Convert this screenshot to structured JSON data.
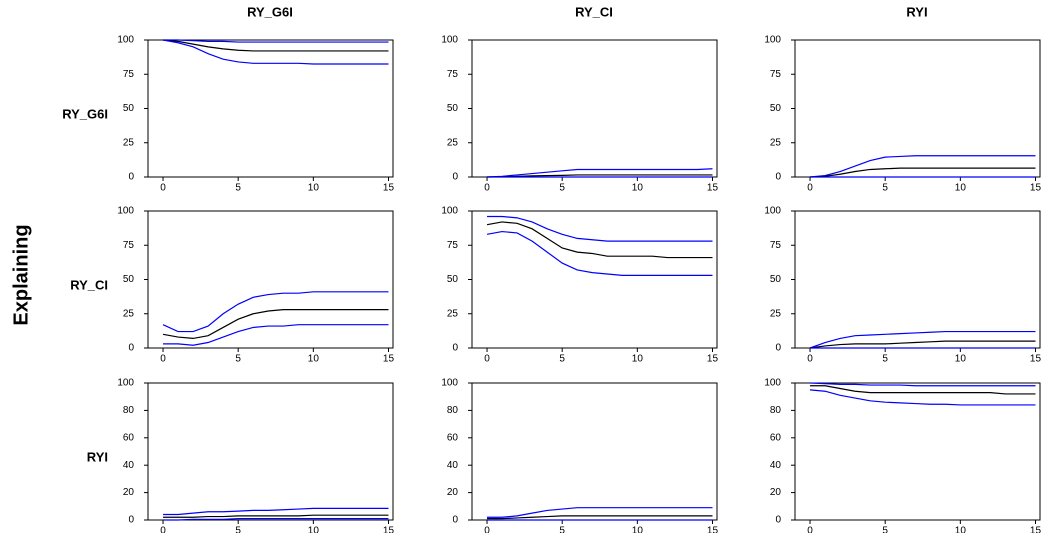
{
  "column_titles": [
    "RY_G6I",
    "RY_CI",
    "RYI"
  ],
  "row_labels": [
    "RY_G6I",
    "RY_CI",
    "RYI"
  ],
  "side_label": "Explaining",
  "chart_data": [
    {
      "type": "line",
      "x": [
        0,
        1,
        2,
        3,
        4,
        5,
        6,
        7,
        8,
        9,
        10,
        11,
        12,
        13,
        14,
        15
      ],
      "xlim": [
        -1,
        15.3
      ],
      "xticks": [
        0,
        5,
        10,
        15
      ],
      "ylim": [
        0,
        100
      ],
      "yticks": [
        0,
        25,
        50,
        75,
        100
      ],
      "series": [
        {
          "color": "#0000ff",
          "values": [
            100,
            100,
            99.5,
            99,
            99,
            98.5,
            98.5,
            98.5,
            98.5,
            98.5,
            98.5,
            98.5,
            98.5,
            98.5,
            98.5,
            98.5
          ]
        },
        {
          "color": "#000000",
          "values": [
            100,
            99,
            97,
            95,
            93.5,
            92.5,
            92,
            92,
            92,
            92,
            92,
            92,
            92,
            92,
            92,
            92
          ]
        },
        {
          "color": "#0000ff",
          "values": [
            100,
            98,
            95,
            90,
            86,
            84,
            83,
            83,
            83,
            83,
            82.5,
            82.5,
            82.5,
            82.5,
            82.5,
            82.5
          ]
        }
      ]
    },
    {
      "type": "line",
      "x": [
        0,
        1,
        2,
        3,
        4,
        5,
        6,
        7,
        8,
        9,
        10,
        11,
        12,
        13,
        14,
        15
      ],
      "xlim": [
        -1,
        15.3
      ],
      "xticks": [
        0,
        5,
        10,
        15
      ],
      "ylim": [
        0,
        100
      ],
      "yticks": [
        0,
        25,
        50,
        75,
        100
      ],
      "series": [
        {
          "color": "#0000ff",
          "values": [
            0,
            0.5,
            1.5,
            2.5,
            3.5,
            4.5,
            5.5,
            5.5,
            5.5,
            5.5,
            5.5,
            5.5,
            5.5,
            5.5,
            5.5,
            6
          ]
        },
        {
          "color": "#000000",
          "values": [
            0,
            0.2,
            0.5,
            0.8,
            1,
            1.2,
            1.5,
            1.5,
            1.5,
            1.5,
            1.5,
            1.5,
            1.5,
            1.5,
            1.5,
            1.5
          ]
        },
        {
          "color": "#0000ff",
          "values": [
            0,
            0,
            0,
            0,
            0,
            0,
            0,
            0,
            0,
            0,
            0,
            0,
            0,
            0,
            0,
            0
          ]
        }
      ]
    },
    {
      "type": "line",
      "x": [
        0,
        1,
        2,
        3,
        4,
        5,
        6,
        7,
        8,
        9,
        10,
        11,
        12,
        13,
        14,
        15
      ],
      "xlim": [
        -1,
        15.3
      ],
      "xticks": [
        0,
        5,
        10,
        15
      ],
      "ylim": [
        0,
        100
      ],
      "yticks": [
        0,
        25,
        50,
        75,
        100
      ],
      "series": [
        {
          "color": "#0000ff",
          "values": [
            0,
            1,
            4,
            8,
            12,
            14.5,
            15,
            15.5,
            15.5,
            15.5,
            15.5,
            15.5,
            15.5,
            15.5,
            15.5,
            15.5
          ]
        },
        {
          "color": "#000000",
          "values": [
            0,
            0.5,
            2,
            4,
            5.5,
            6,
            6.5,
            6.5,
            6.5,
            6.5,
            6.5,
            6.5,
            6.5,
            6.5,
            6.5,
            6.5
          ]
        },
        {
          "color": "#0000ff",
          "values": [
            0,
            0,
            0,
            0,
            0,
            0,
            0,
            0,
            0,
            0,
            0,
            0,
            0,
            0,
            0,
            0
          ]
        }
      ]
    },
    {
      "type": "line",
      "x": [
        0,
        1,
        2,
        3,
        4,
        5,
        6,
        7,
        8,
        9,
        10,
        11,
        12,
        13,
        14,
        15
      ],
      "xlim": [
        -1,
        15.3
      ],
      "xticks": [
        0,
        5,
        10,
        15
      ],
      "ylim": [
        0,
        100
      ],
      "yticks": [
        0,
        25,
        50,
        75,
        100
      ],
      "series": [
        {
          "color": "#0000ff",
          "values": [
            17,
            12,
            12,
            16,
            25,
            32,
            37,
            39,
            40,
            40,
            41,
            41,
            41,
            41,
            41,
            41
          ]
        },
        {
          "color": "#000000",
          "values": [
            10,
            8,
            7,
            9,
            15,
            21,
            25,
            27,
            28,
            28,
            28,
            28,
            28,
            28,
            28,
            28
          ]
        },
        {
          "color": "#0000ff",
          "values": [
            3,
            3,
            2,
            4,
            8,
            12,
            15,
            16,
            16,
            17,
            17,
            17,
            17,
            17,
            17,
            17
          ]
        }
      ]
    },
    {
      "type": "line",
      "x": [
        0,
        1,
        2,
        3,
        4,
        5,
        6,
        7,
        8,
        9,
        10,
        11,
        12,
        13,
        14,
        15
      ],
      "xlim": [
        -1,
        15.3
      ],
      "xticks": [
        0,
        5,
        10,
        15
      ],
      "ylim": [
        0,
        100
      ],
      "yticks": [
        0,
        25,
        50,
        75,
        100
      ],
      "series": [
        {
          "color": "#0000ff",
          "values": [
            96,
            96,
            95,
            92,
            87,
            83,
            80,
            79,
            78,
            78,
            78,
            78,
            78,
            78,
            78,
            78
          ]
        },
        {
          "color": "#000000",
          "values": [
            90,
            92,
            91,
            87,
            80,
            73,
            70,
            69,
            67,
            67,
            67,
            67,
            66,
            66,
            66,
            66
          ]
        },
        {
          "color": "#0000ff",
          "values": [
            83,
            85,
            84,
            78,
            70,
            62,
            57,
            55,
            54,
            53,
            53,
            53,
            53,
            53,
            53,
            53
          ]
        }
      ]
    },
    {
      "type": "line",
      "x": [
        0,
        1,
        2,
        3,
        4,
        5,
        6,
        7,
        8,
        9,
        10,
        11,
        12,
        13,
        14,
        15
      ],
      "xlim": [
        -1,
        15.3
      ],
      "xticks": [
        0,
        5,
        10,
        15
      ],
      "ylim": [
        0,
        100
      ],
      "yticks": [
        0,
        25,
        50,
        75,
        100
      ],
      "series": [
        {
          "color": "#0000ff",
          "values": [
            0,
            4,
            7,
            9,
            9.5,
            10,
            10.5,
            11,
            11.5,
            12,
            12,
            12,
            12,
            12,
            12,
            12
          ]
        },
        {
          "color": "#000000",
          "values": [
            0,
            1.5,
            2.5,
            3,
            3,
            3,
            3.5,
            4,
            4.5,
            5,
            5,
            5,
            5,
            5,
            5,
            5
          ]
        },
        {
          "color": "#0000ff",
          "values": [
            0,
            0,
            0,
            0,
            0,
            0,
            0,
            0,
            0,
            0,
            0,
            0,
            0,
            0,
            0,
            0
          ]
        }
      ]
    },
    {
      "type": "line",
      "x": [
        0,
        1,
        2,
        3,
        4,
        5,
        6,
        7,
        8,
        9,
        10,
        11,
        12,
        13,
        14,
        15
      ],
      "xlim": [
        -1,
        15.3
      ],
      "xticks": [
        0,
        5,
        10,
        15
      ],
      "ylim": [
        0,
        100
      ],
      "yticks": [
        0,
        20,
        40,
        60,
        80,
        100
      ],
      "series": [
        {
          "color": "#0000ff",
          "values": [
            4,
            4,
            5,
            6,
            6,
            6.5,
            7,
            7,
            7.5,
            8,
            8.5,
            8.5,
            8.5,
            8.5,
            8.5,
            8.5
          ]
        },
        {
          "color": "#000000",
          "values": [
            2,
            2,
            2,
            2.5,
            2.5,
            3,
            3,
            3,
            3,
            3,
            3.5,
            3.5,
            3.5,
            3.5,
            3.5,
            3.5
          ]
        },
        {
          "color": "#0000ff",
          "values": [
            0,
            0,
            0.5,
            0.5,
            0.5,
            1,
            1,
            1,
            1,
            1,
            1,
            1,
            1,
            1,
            1,
            1
          ]
        }
      ]
    },
    {
      "type": "line",
      "x": [
        0,
        1,
        2,
        3,
        4,
        5,
        6,
        7,
        8,
        9,
        10,
        11,
        12,
        13,
        14,
        15
      ],
      "xlim": [
        -1,
        15.3
      ],
      "xticks": [
        0,
        5,
        10,
        15
      ],
      "ylim": [
        0,
        100
      ],
      "yticks": [
        0,
        20,
        40,
        60,
        80,
        100
      ],
      "series": [
        {
          "color": "#0000ff",
          "values": [
            2,
            2,
            3,
            5,
            7,
            8,
            9,
            9,
            9,
            9,
            9,
            9,
            9,
            9,
            9,
            9
          ]
        },
        {
          "color": "#000000",
          "values": [
            1,
            1,
            1.5,
            2,
            2.5,
            3,
            3,
            3,
            3,
            3,
            3,
            3,
            3,
            3,
            3,
            3
          ]
        },
        {
          "color": "#0000ff",
          "values": [
            0,
            0,
            0,
            0,
            0,
            0,
            0,
            0,
            0,
            0,
            0,
            0,
            0,
            0,
            0,
            0
          ]
        }
      ]
    },
    {
      "type": "line",
      "x": [
        0,
        1,
        2,
        3,
        4,
        5,
        6,
        7,
        8,
        9,
        10,
        11,
        12,
        13,
        14,
        15
      ],
      "xlim": [
        -1,
        15.3
      ],
      "xticks": [
        0,
        5,
        10,
        15
      ],
      "ylim": [
        0,
        100
      ],
      "yticks": [
        0,
        20,
        40,
        60,
        80,
        100
      ],
      "series": [
        {
          "color": "#0000ff",
          "values": [
            100,
            99.5,
            99,
            99,
            98.5,
            98.5,
            98.5,
            98,
            98,
            98,
            98,
            98,
            98,
            98,
            98,
            98
          ]
        },
        {
          "color": "#000000",
          "values": [
            98,
            98,
            96,
            94,
            93,
            93,
            93,
            93,
            93,
            93,
            93,
            93,
            93,
            92,
            92,
            92
          ]
        },
        {
          "color": "#0000ff",
          "values": [
            95,
            94,
            91,
            89,
            87,
            86,
            85.5,
            85,
            84.5,
            84.5,
            84,
            84,
            84,
            84,
            84,
            84
          ]
        }
      ]
    }
  ]
}
